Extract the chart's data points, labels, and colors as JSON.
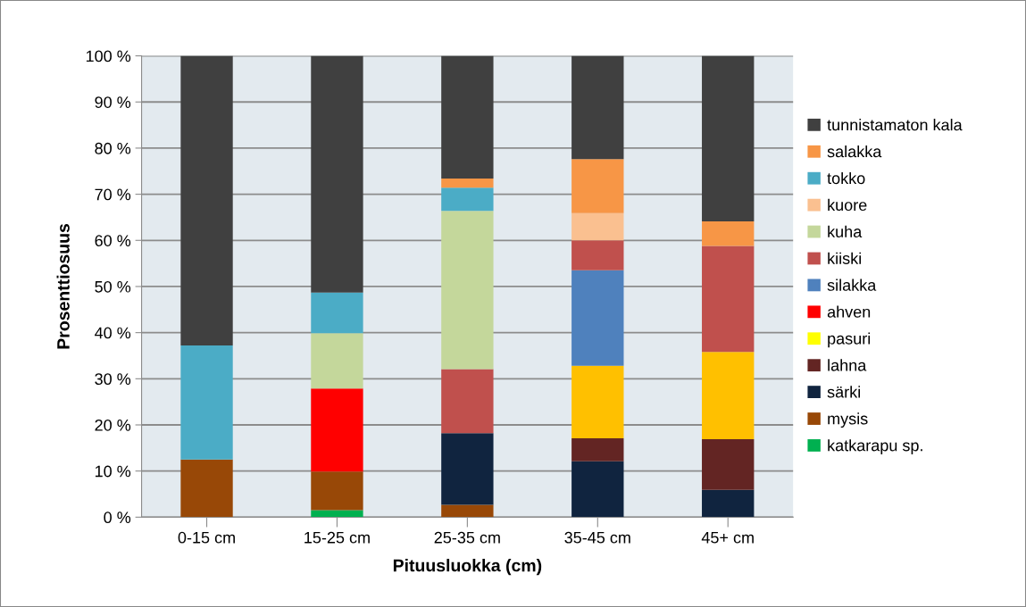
{
  "chart_data": {
    "type": "bar",
    "stacked": true,
    "xlabel": "Pituusluokka (cm)",
    "ylabel": "Prosenttiosuus",
    "categories": [
      "0-15 cm",
      "15-25 cm",
      "25-35 cm",
      "35-45 cm",
      "45+ cm"
    ],
    "series": [
      {
        "name": "katkarapu sp.",
        "color": "#00b050",
        "values": [
          null,
          1.5,
          null,
          null,
          null
        ]
      },
      {
        "name": "mysis",
        "color": "#984807",
        "values": [
          12.5,
          8.4,
          2.7,
          null,
          null
        ]
      },
      {
        "name": "särki",
        "color": "#10243f",
        "values": [
          null,
          null,
          15.5,
          12.1,
          5.9
        ]
      },
      {
        "name": "lahna",
        "color": "#632523",
        "values": [
          null,
          null,
          null,
          5.0,
          11.0
        ]
      },
      {
        "color": "#ffc000",
        "values": [
          null,
          null,
          null,
          15.7,
          18.9
        ]
      },
      {
        "name": "pasuri",
        "color": "#ffff00",
        "values": [
          null,
          null,
          null,
          null,
          null
        ]
      },
      {
        "name": "ahven",
        "color": "#ff0000",
        "values": [
          null,
          18.0,
          null,
          null,
          null
        ]
      },
      {
        "name": "silakka",
        "color": "#4f81bd",
        "values": [
          null,
          null,
          null,
          20.7,
          null
        ]
      },
      {
        "name": "kiiski",
        "color": "#c0504d",
        "values": [
          null,
          null,
          13.9,
          6.5,
          23.0
        ]
      },
      {
        "name": "kuha",
        "color": "#c4d79b",
        "values": [
          null,
          12.0,
          34.3,
          null,
          null
        ]
      },
      {
        "name": "kuore",
        "color": "#fac090",
        "values": [
          null,
          null,
          null,
          5.9,
          null
        ]
      },
      {
        "name": "tokko",
        "color": "#4bacc6",
        "values": [
          24.7,
          8.8,
          5.0,
          null,
          null
        ]
      },
      {
        "name": "salakka",
        "color": "#f79646",
        "values": [
          null,
          null,
          2.0,
          11.7,
          5.3
        ]
      },
      {
        "name": "tunnistamaton kala",
        "color": "#404040",
        "values": [
          62.8,
          51.3,
          26.6,
          22.4,
          35.9
        ]
      }
    ],
    "ylim": [
      0,
      100
    ],
    "yticks": [
      {
        "value": 0,
        "label": "0 %"
      },
      {
        "value": 10,
        "label": "10 %"
      },
      {
        "value": 20,
        "label": "20 %"
      },
      {
        "value": 30,
        "label": "30 %"
      },
      {
        "value": 40,
        "label": "40 %"
      },
      {
        "value": 50,
        "label": "50 %"
      },
      {
        "value": 60,
        "label": "60 %"
      },
      {
        "value": 70,
        "label": "70 %"
      },
      {
        "value": 80,
        "label": "80 %"
      },
      {
        "value": 90,
        "label": "90 %"
      },
      {
        "value": 100,
        "label": "100 %"
      }
    ],
    "grid": "y",
    "legend": "right"
  }
}
